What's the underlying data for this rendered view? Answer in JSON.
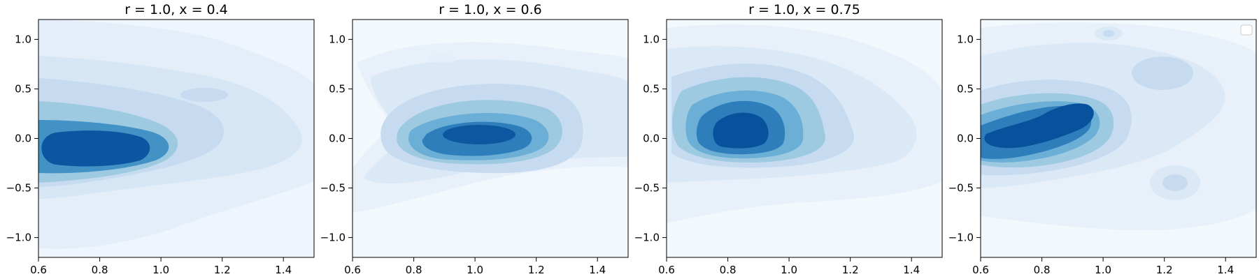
{
  "chart_data": [
    {
      "type": "contour",
      "title": "r = 1.0, x = 0.4",
      "xlim": [
        0.6,
        1.5
      ],
      "ylim": [
        -1.2,
        1.2
      ],
      "xticks": [
        0.6,
        0.8,
        1.0,
        1.2,
        1.4
      ],
      "yticks": [
        1.0,
        0.5,
        0.0,
        -0.5,
        -1.0
      ],
      "xtick_labels": [
        "0.6",
        "0.8",
        "1.0",
        "1.2",
        "1.4"
      ],
      "ytick_labels": [
        "1.0",
        "0.5",
        "0.0",
        "−0.5",
        "−1.0"
      ],
      "colormap": "Blues",
      "peak": {
        "x": 0.78,
        "y": -0.1
      },
      "secondary_peaks": [
        {
          "x": 1.14,
          "y": 0.45
        }
      ],
      "legend": false
    },
    {
      "type": "contour",
      "title": "r = 1.0, x = 0.6",
      "xlim": [
        0.6,
        1.5
      ],
      "ylim": [
        -1.2,
        1.2
      ],
      "xticks": [
        0.6,
        0.8,
        1.0,
        1.2,
        1.4
      ],
      "yticks": [
        1.0,
        0.5,
        0.0,
        -0.5,
        -1.0
      ],
      "xtick_labels": [
        "0.6",
        "0.8",
        "1.0",
        "1.2",
        "1.4"
      ],
      "ytick_labels": [
        "1.0",
        "0.5",
        "0.0",
        "−0.5",
        "−1.0"
      ],
      "colormap": "Blues",
      "peak": {
        "x": 1.02,
        "y": 0.05
      },
      "secondary_peaks": [
        {
          "x": 0.9,
          "y": 0.82
        }
      ],
      "legend": false
    },
    {
      "type": "contour",
      "title": "r = 1.0, x = 0.75",
      "xlim": [
        0.6,
        1.5
      ],
      "ylim": [
        -1.2,
        1.2
      ],
      "xticks": [
        0.6,
        0.8,
        1.0,
        1.2,
        1.4
      ],
      "yticks": [
        1.0,
        0.5,
        0.0,
        -0.5,
        -1.0
      ],
      "xtick_labels": [
        "0.6",
        "0.8",
        "1.0",
        "1.2",
        "1.4"
      ],
      "ytick_labels": [
        "1.0",
        "0.5",
        "0.0",
        "−0.5",
        "−1.0"
      ],
      "colormap": "Blues",
      "peak": {
        "x": 0.88,
        "y": 0.08
      },
      "secondary_peaks": [],
      "legend": false
    },
    {
      "type": "contour",
      "title": "",
      "xlim": [
        0.6,
        1.5
      ],
      "ylim": [
        -1.2,
        1.2
      ],
      "xticks": [
        0.6,
        0.8,
        1.0,
        1.2,
        1.4
      ],
      "yticks": [
        1.0,
        0.5,
        0.0,
        -0.5,
        -1.0
      ],
      "xtick_labels": [
        "0.6",
        "0.8",
        "1.0",
        "1.2",
        "1.4"
      ],
      "ytick_labels": [
        "1.0",
        "0.5",
        "0.0",
        "−0.5",
        "−1.0"
      ],
      "colormap": "Blues",
      "peak": {
        "x": 0.85,
        "y": 0.15
      },
      "secondary_peaks": [
        {
          "x": 1.25,
          "y": 0.62
        },
        {
          "x": 1.24,
          "y": -0.45
        },
        {
          "x": 1.0,
          "y": 1.05
        }
      ],
      "legend": "top-right"
    }
  ],
  "colors": {
    "levels": [
      "#f7fbff",
      "#e9f2fb",
      "#dbe9f6",
      "#c6dbef",
      "#9ecae1",
      "#6baed6",
      "#4292c6",
      "#2171b5",
      "#08519c"
    ]
  }
}
